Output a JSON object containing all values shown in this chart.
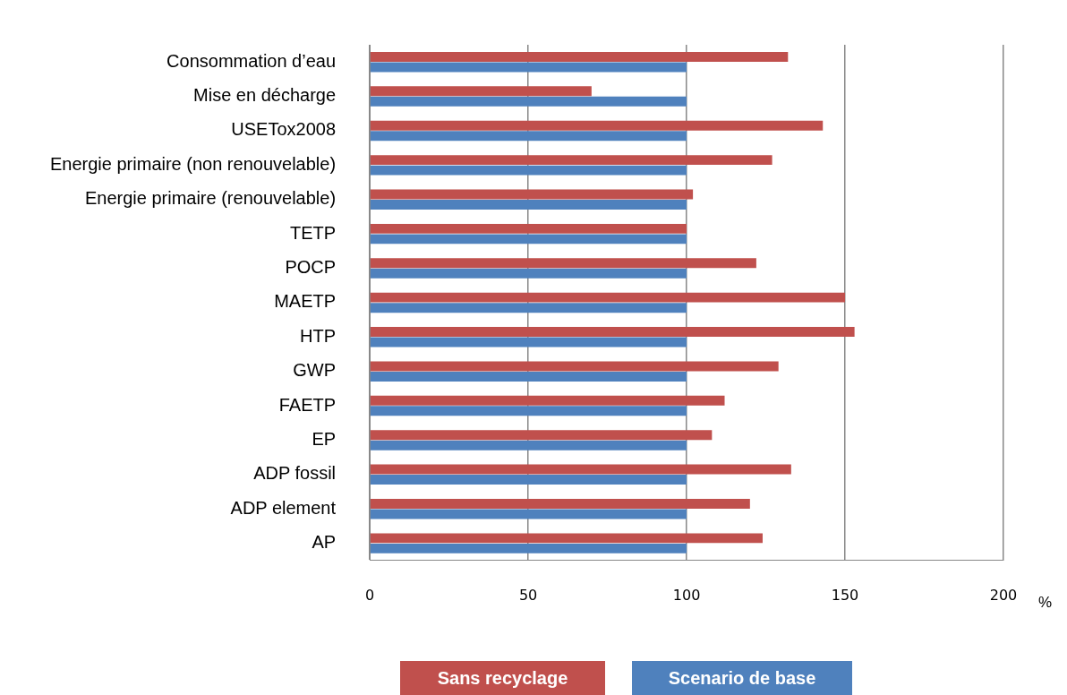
{
  "chart_data": {
    "type": "bar",
    "orientation": "horizontal",
    "xlabel": "%",
    "categories": [
      "Consommation d’eau",
      "Mise en décharge",
      "USETox2008",
      "Energie primaire (non renouvelable)",
      "Energie primaire (renouvelable)",
      "TETP",
      "POCP",
      "MAETP",
      "HTP",
      "GWP",
      "FAETP",
      "EP",
      "ADP fossil",
      "ADP element",
      "AP"
    ],
    "series": [
      {
        "name": "Sans recyclage",
        "color": "#c0504d",
        "values": [
          132,
          70,
          143,
          127,
          102,
          100,
          122,
          150,
          153,
          129,
          112,
          108,
          133,
          120,
          124
        ]
      },
      {
        "name": "Scenario de base",
        "color": "#4f81bd",
        "values": [
          100,
          100,
          100,
          100,
          100,
          100,
          100,
          100,
          100,
          100,
          100,
          100,
          100,
          100,
          100
        ]
      }
    ],
    "xlim": [
      0,
      200
    ],
    "xticks": [
      0,
      50,
      100,
      150,
      200
    ],
    "grid": "x",
    "legend": "bottom"
  }
}
